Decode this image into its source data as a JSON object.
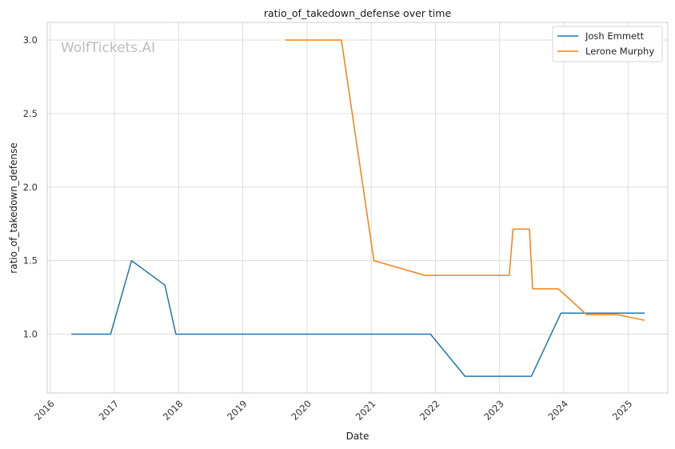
{
  "chart_data": {
    "type": "line",
    "title": "ratio_of_takedown_defense over time",
    "xlabel": "Date",
    "ylabel": "ratio_of_takedown_defense",
    "watermark": "WolfTickets.AI",
    "xlim": [
      "2015-12-15",
      "2025-08-15"
    ],
    "ylim": [
      0.6,
      3.12
    ],
    "x_ticks": [
      "2016",
      "2017",
      "2018",
      "2019",
      "2020",
      "2021",
      "2022",
      "2023",
      "2024",
      "2025"
    ],
    "y_ticks": [
      "1.0",
      "1.5",
      "2.0",
      "2.5",
      "3.0"
    ],
    "grid": true,
    "legend_position": "top-right",
    "series": [
      {
        "name": "Josh Emmett",
        "color": "#1f77b4",
        "points": [
          {
            "x": "2016-05-01",
            "y": 1.0
          },
          {
            "x": "2016-12-10",
            "y": 1.0
          },
          {
            "x": "2017-04-08",
            "y": 1.5
          },
          {
            "x": "2017-10-15",
            "y": 1.333
          },
          {
            "x": "2017-12-16",
            "y": 1.0
          },
          {
            "x": "2021-12-04",
            "y": 1.0
          },
          {
            "x": "2022-06-18",
            "y": 0.714
          },
          {
            "x": "2023-07-01",
            "y": 0.714
          },
          {
            "x": "2023-12-16",
            "y": 1.143
          },
          {
            "x": "2025-04-05",
            "y": 1.143
          }
        ]
      },
      {
        "name": "Lerone Murphy",
        "color": "#ff7f0e",
        "points": [
          {
            "x": "2019-08-31",
            "y": 3.0
          },
          {
            "x": "2020-07-15",
            "y": 3.0
          },
          {
            "x": "2021-01-16",
            "y": 1.5
          },
          {
            "x": "2021-11-01",
            "y": 1.4
          },
          {
            "x": "2023-02-25",
            "y": 1.4
          },
          {
            "x": "2023-03-18",
            "y": 1.714
          },
          {
            "x": "2023-06-20",
            "y": 1.714
          },
          {
            "x": "2023-07-08",
            "y": 1.308
          },
          {
            "x": "2023-12-01",
            "y": 1.308
          },
          {
            "x": "2024-05-10",
            "y": 1.133
          },
          {
            "x": "2024-11-01",
            "y": 1.133
          },
          {
            "x": "2025-04-05",
            "y": 1.094
          }
        ]
      }
    ]
  }
}
